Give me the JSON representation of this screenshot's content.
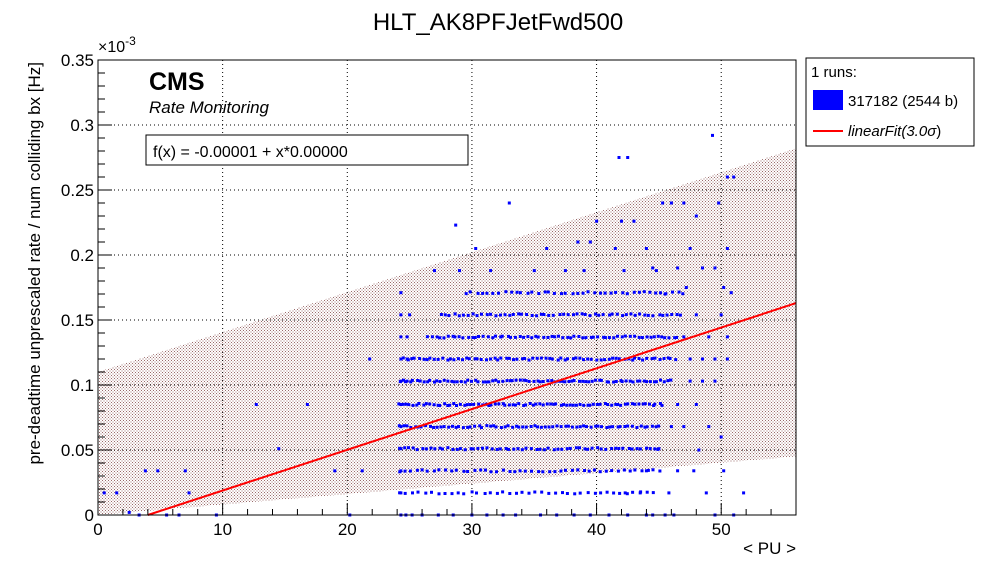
{
  "chart_data": {
    "type": "scatter",
    "title": "HLT_AK8PFJetFwd500",
    "xlabel": "< PU >",
    "ylabel": "pre-deadtime unprescaled rate / num colliding bx [Hz]",
    "y_exponent_label": "×10",
    "y_exponent_power": "-3",
    "xlim": [
      0,
      56
    ],
    "ylim": [
      0,
      0.35
    ],
    "x_ticks": [
      0,
      10,
      20,
      30,
      40,
      50
    ],
    "y_ticks": [
      0,
      0.05,
      0.1,
      0.15,
      0.2,
      0.25,
      0.3,
      0.35
    ],
    "y_tick_labels": [
      "0",
      "0.05",
      "0.1",
      "0.15",
      "0.2",
      "0.25",
      "0.3",
      "0.35"
    ],
    "grid": true,
    "legend_position": "right",
    "colors": {
      "points": "#0000ff",
      "fit": "#ff0000",
      "band": "#a07070"
    },
    "cms_label": "CMS",
    "subtitle": "Rate Monitoring",
    "fit_box": "f(x) = -0.00001 + x*0.00000",
    "legend": {
      "header": "1 runs:",
      "entries": [
        {
          "label": "317182 (2544 b)",
          "kind": "box"
        },
        {
          "label_main": "linearFit(3.0",
          "label_sigma": "σ",
          "label_end": ")",
          "kind": "line"
        }
      ]
    },
    "fit": {
      "x0": 4.0,
      "y0": 0.0,
      "x1": 56.0,
      "y1": 0.163
    },
    "band": {
      "upper": [
        [
          0,
          0.11
        ],
        [
          56,
          0.282
        ]
      ],
      "lower": [
        [
          0,
          0.0
        ],
        [
          56,
          0.045
        ]
      ]
    },
    "series": [
      {
        "name": "317182 (2544 b)",
        "points": [
          [
            0.5,
            0.017
          ],
          [
            1.5,
            0.017
          ],
          [
            2.5,
            0.002
          ],
          [
            3.3,
            0.0
          ],
          [
            3.8,
            0.034
          ],
          [
            4.8,
            0.034
          ],
          [
            5.5,
            0.0
          ],
          [
            6.5,
            0.0
          ],
          [
            7.3,
            0.017
          ],
          [
            7.0,
            0.034
          ],
          [
            9.5,
            0.0
          ],
          [
            12.7,
            0.085
          ],
          [
            14.5,
            0.051
          ],
          [
            16.8,
            0.085
          ],
          [
            19.0,
            0.034
          ],
          [
            20.2,
            0.0
          ],
          [
            21.2,
            0.034
          ],
          [
            21.8,
            0.12
          ],
          [
            28.7,
            0.223
          ],
          [
            30.3,
            0.205
          ],
          [
            33.0,
            0.24
          ],
          [
            37.0,
            0.103
          ],
          [
            41.8,
            0.275
          ],
          [
            42.5,
            0.275
          ],
          [
            49.3,
            0.292
          ],
          [
            50.5,
            0.26
          ],
          [
            51.0,
            0.26
          ],
          [
            40.0,
            0.226
          ],
          [
            42.0,
            0.226
          ],
          [
            43.0,
            0.226
          ],
          [
            45.3,
            0.24
          ],
          [
            46.0,
            0.24
          ],
          [
            47.0,
            0.24
          ],
          [
            38.5,
            0.21
          ],
          [
            39.5,
            0.21
          ],
          [
            41.5,
            0.205
          ],
          [
            44.0,
            0.205
          ],
          [
            47.5,
            0.205
          ],
          [
            44.5,
            0.19
          ],
          [
            46.5,
            0.19
          ],
          [
            48.5,
            0.19
          ],
          [
            49.5,
            0.19
          ],
          [
            50.2,
            0.175
          ],
          [
            47.2,
            0.175
          ],
          [
            45.5,
            0.17
          ],
          [
            48.0,
            0.23
          ],
          [
            49.8,
            0.24
          ],
          [
            50.5,
            0.205
          ],
          [
            27.0,
            0.188
          ],
          [
            29.0,
            0.188
          ],
          [
            31.5,
            0.188
          ],
          [
            35.0,
            0.188
          ],
          [
            37.5,
            0.188
          ],
          [
            39.0,
            0.188
          ],
          [
            42.2,
            0.188
          ],
          [
            44.8,
            0.188
          ],
          [
            36.0,
            0.205
          ],
          [
            24.3,
            0.0
          ],
          [
            24.7,
            0.0
          ],
          [
            25.2,
            0.0
          ],
          [
            26.0,
            0.0
          ],
          [
            27.3,
            0.0
          ],
          [
            28.5,
            0.0
          ],
          [
            30.0,
            0.0
          ],
          [
            31.2,
            0.0
          ],
          [
            32.5,
            0.0
          ],
          [
            33.5,
            0.0
          ],
          [
            35.5,
            0.0
          ],
          [
            36.8,
            0.0
          ],
          [
            38.2,
            0.0
          ],
          [
            39.5,
            0.0
          ],
          [
            41.0,
            0.0
          ],
          [
            42.5,
            0.0
          ],
          [
            44.0,
            0.0
          ],
          [
            45.5,
            0.0
          ],
          [
            24.3,
            0.017
          ],
          [
            24.3,
            0.034
          ],
          [
            24.3,
            0.051
          ],
          [
            24.3,
            0.068
          ],
          [
            24.3,
            0.085
          ],
          [
            24.3,
            0.103
          ],
          [
            24.3,
            0.12
          ],
          [
            24.3,
            0.137
          ],
          [
            24.3,
            0.154
          ],
          [
            24.3,
            0.171
          ],
          [
            24.8,
            0.12
          ],
          [
            24.8,
            0.103
          ],
          [
            24.8,
            0.137
          ],
          [
            25.0,
            0.154
          ],
          [
            47.5,
            0.12
          ],
          [
            48.5,
            0.12
          ],
          [
            49.5,
            0.12
          ],
          [
            50.5,
            0.12
          ],
          [
            47.5,
            0.103
          ],
          [
            48.5,
            0.103
          ],
          [
            49.5,
            0.103
          ],
          [
            50.5,
            0.137
          ],
          [
            49.0,
            0.137
          ],
          [
            47.0,
            0.137
          ],
          [
            48.0,
            0.154
          ],
          [
            50.0,
            0.154
          ],
          [
            50.8,
            0.171
          ],
          [
            46.5,
            0.085
          ],
          [
            48.0,
            0.085
          ],
          [
            46.0,
            0.068
          ],
          [
            47.0,
            0.068
          ],
          [
            45.0,
            0.051
          ],
          [
            44.0,
            0.034
          ],
          [
            46.5,
            0.034
          ],
          [
            47.8,
            0.034
          ],
          [
            48.8,
            0.017
          ],
          [
            49.5,
            0.0
          ],
          [
            51.0,
            0.0
          ],
          [
            50.2,
            0.034
          ],
          [
            51.8,
            0.017
          ],
          [
            50.0,
            0.06
          ],
          [
            44.5,
            0.0
          ],
          [
            45.8,
            0.017
          ],
          [
            46.2,
            0.0
          ],
          [
            42.3,
            0.017
          ],
          [
            43.5,
            0.017
          ],
          [
            48.2,
            0.05
          ],
          [
            49.0,
            0.068
          ]
        ],
        "bands": [
          {
            "y": 0.017,
            "x0": 24.2,
            "x1": 44.5,
            "n": 40
          },
          {
            "y": 0.034,
            "x0": 24.2,
            "x1": 45.0,
            "n": 46
          },
          {
            "y": 0.051,
            "x0": 24.2,
            "x1": 45.0,
            "n": 60
          },
          {
            "y": 0.068,
            "x0": 24.2,
            "x1": 45.0,
            "n": 70
          },
          {
            "y": 0.085,
            "x0": 24.2,
            "x1": 45.3,
            "n": 78
          },
          {
            "y": 0.103,
            "x0": 24.2,
            "x1": 46.0,
            "n": 80
          },
          {
            "y": 0.12,
            "x0": 24.5,
            "x1": 46.3,
            "n": 70
          },
          {
            "y": 0.137,
            "x0": 26.5,
            "x1": 46.5,
            "n": 64
          },
          {
            "y": 0.154,
            "x0": 27.5,
            "x1": 46.8,
            "n": 54
          },
          {
            "y": 0.171,
            "x0": 29.5,
            "x1": 47.0,
            "n": 40
          }
        ]
      }
    ]
  }
}
